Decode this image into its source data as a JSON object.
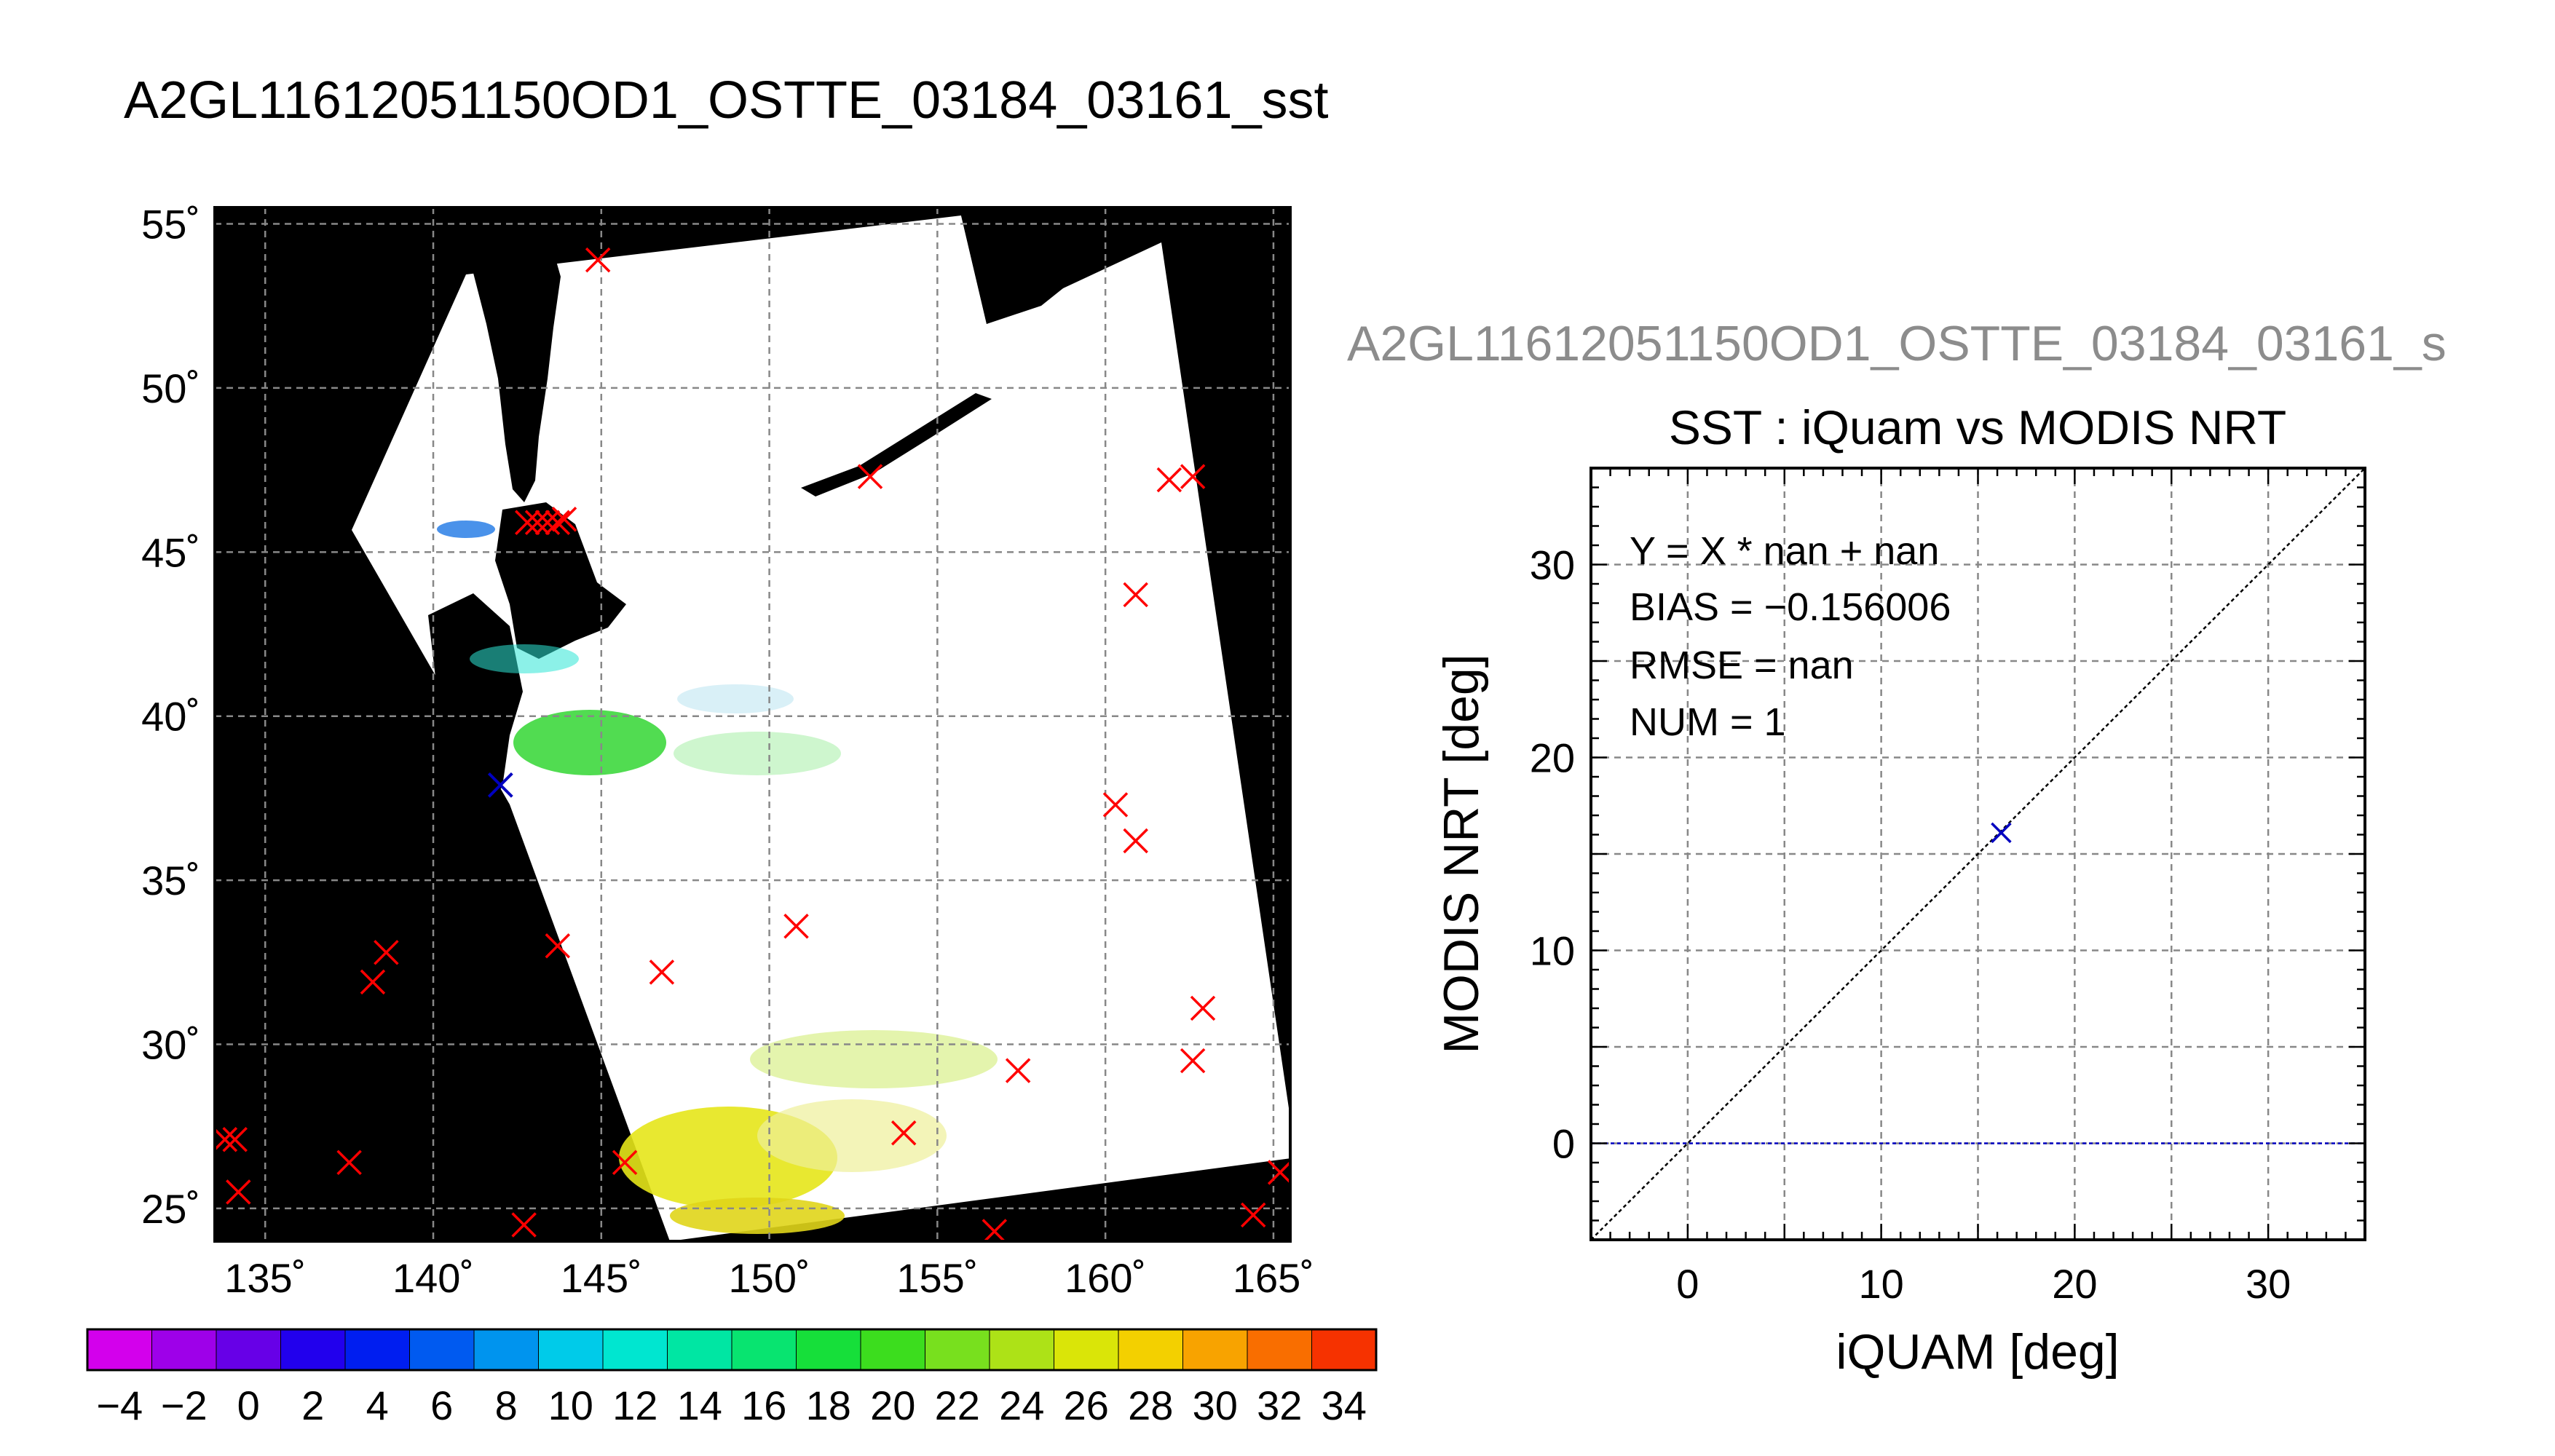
{
  "page": {
    "title": "A2GL11612051150OD1_OSTTE_03184_03161_sst"
  },
  "colors": {
    "background": "#ffffff",
    "land": "#000000",
    "swath": "#ffffff",
    "grid": "#888888",
    "marker_map": "#ff0000",
    "marker_scatter": "#0000c0",
    "diagonal": "#000000",
    "zero_line": "#0000c0",
    "secondary_title": "#8c8c8c"
  },
  "map": {
    "lon_ticks": [
      135,
      140,
      145,
      150,
      155,
      160,
      165
    ],
    "lon_tick_labels": [
      "135˚",
      "140˚",
      "145˚",
      "150˚",
      "155˚",
      "160˚",
      "165˚"
    ],
    "lat_ticks": [
      25,
      30,
      35,
      40,
      45,
      50,
      55
    ],
    "lat_tick_labels": [
      "25˚",
      "30˚",
      "35˚",
      "40˚",
      "45˚",
      "50˚",
      "55˚"
    ],
    "lon_range": [
      133.5,
      165.5
    ],
    "lat_range": [
      24,
      55.5
    ],
    "stations": [
      [
        144.9,
        53.9
      ],
      [
        153.0,
        47.3
      ],
      [
        161.9,
        47.2
      ],
      [
        162.6,
        47.3
      ],
      [
        143.1,
        45.9
      ],
      [
        143.4,
        45.9
      ],
      [
        143.7,
        45.9
      ],
      [
        143.9,
        46.0
      ],
      [
        142.8,
        45.9
      ],
      [
        160.9,
        43.7
      ],
      [
        160.3,
        37.3
      ],
      [
        160.9,
        36.2
      ],
      [
        150.8,
        33.6
      ],
      [
        143.7,
        33.0
      ],
      [
        146.8,
        32.2
      ],
      [
        138.6,
        32.8
      ],
      [
        138.2,
        31.9
      ],
      [
        162.9,
        31.1
      ],
      [
        157.4,
        29.2
      ],
      [
        162.6,
        29.5
      ],
      [
        154.0,
        27.3
      ],
      [
        133.8,
        27.1
      ],
      [
        134.1,
        27.1
      ],
      [
        137.5,
        26.4
      ],
      [
        145.7,
        26.4
      ],
      [
        134.2,
        25.5
      ],
      [
        142.7,
        24.5
      ],
      [
        156.7,
        24.3
      ],
      [
        164.4,
        24.8
      ],
      [
        165.2,
        26.1
      ]
    ],
    "matched_station": [
      142.0,
      37.9
    ]
  },
  "colorbar": {
    "min": -5,
    "max": 35,
    "step": 2,
    "tick_values": [
      -4,
      -2,
      0,
      2,
      4,
      6,
      8,
      10,
      12,
      14,
      16,
      18,
      20,
      22,
      24,
      26,
      28,
      30,
      32,
      34
    ],
    "tick_labels": [
      "−4",
      "−2",
      "0",
      "2",
      "4",
      "6",
      "8",
      "10",
      "12",
      "14",
      "16",
      "18",
      "20",
      "22",
      "24",
      "26",
      "28",
      "30",
      "32",
      "34"
    ]
  },
  "scatter_panel": {
    "secondary_title": "A2GL11612051150OD1_OSTTE_03184_03161_s",
    "title": "SST : iQuam vs MODIS NRT",
    "stats": {
      "fit": "Y = X * nan + nan",
      "bias": "BIAS = −0.156006",
      "rmse": "RMSE = nan",
      "num": "NUM = 1"
    }
  },
  "chart_data": {
    "type": "scatter",
    "title": "SST : iQuam vs MODIS NRT",
    "xlabel": "iQUAM [deg]",
    "ylabel": "MODIS NRT [deg]",
    "xlim": [
      -5,
      35
    ],
    "ylim": [
      -5,
      35
    ],
    "x_ticks": [
      0,
      10,
      20,
      30
    ],
    "x_tick_labels": [
      "0",
      "10",
      "20",
      "30"
    ],
    "y_ticks": [
      0,
      10,
      20,
      30
    ],
    "y_tick_labels": [
      "0",
      "10",
      "20",
      "30"
    ],
    "grid": true,
    "points": [
      {
        "x": 16.2,
        "y": 16.1
      }
    ],
    "reference_lines": [
      "y = x",
      "y = 0"
    ]
  }
}
